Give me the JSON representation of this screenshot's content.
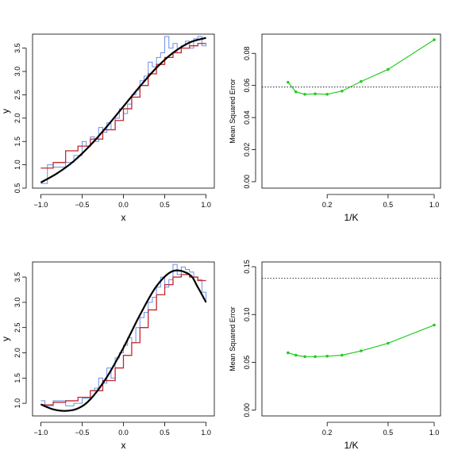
{
  "chart_data": [
    {
      "type": "line",
      "xlabel": "x",
      "ylabel": "y",
      "xlim": [
        -1.1,
        1.1
      ],
      "ylim": [
        0.5,
        3.8
      ],
      "xticks": [
        -1.0,
        -0.5,
        0.0,
        0.5,
        1.0
      ],
      "xtick_labels": [
        "−1.0",
        "−0.5",
        "0.0",
        "0.5",
        "1.0"
      ],
      "yticks": [
        0.5,
        1.0,
        1.5,
        2.0,
        2.5,
        3.0,
        3.5
      ],
      "ytick_labels": [
        "0.5",
        "1.0",
        "1.5",
        "2.0",
        "2.5",
        "3.0",
        "3.5"
      ],
      "series": [
        {
          "style": "step",
          "color": "#6b8ee6",
          "x": [
            -1.0,
            -0.92,
            -0.85,
            -0.7,
            -0.6,
            -0.5,
            -0.45,
            -0.4,
            -0.35,
            -0.3,
            -0.25,
            -0.2,
            -0.15,
            -0.1,
            -0.05,
            0.0,
            0.05,
            0.1,
            0.15,
            0.2,
            0.25,
            0.3,
            0.35,
            0.4,
            0.45,
            0.5,
            0.55,
            0.6,
            0.65,
            0.7,
            0.75,
            0.8,
            0.85,
            0.9,
            0.95,
            1.0
          ],
          "y": [
            0.6,
            1.0,
            0.95,
            1.05,
            1.2,
            1.5,
            1.4,
            1.6,
            1.5,
            1.8,
            1.7,
            1.9,
            1.75,
            2.0,
            2.2,
            2.1,
            2.3,
            2.5,
            2.6,
            2.8,
            2.9,
            3.2,
            3.1,
            3.3,
            3.4,
            3.75,
            3.5,
            3.6,
            3.4,
            3.55,
            3.65,
            3.5,
            3.7,
            3.75,
            3.55,
            3.6
          ]
        },
        {
          "style": "step",
          "color": "#c0282d",
          "x": [
            -1.0,
            -0.85,
            -0.7,
            -0.55,
            -0.4,
            -0.25,
            -0.1,
            0.0,
            0.1,
            0.2,
            0.3,
            0.4,
            0.5,
            0.6,
            0.7,
            0.8,
            0.9,
            1.0
          ],
          "y": [
            0.93,
            1.05,
            1.3,
            1.4,
            1.55,
            1.75,
            1.95,
            2.2,
            2.45,
            2.7,
            2.95,
            3.15,
            3.3,
            3.4,
            3.5,
            3.55,
            3.6,
            3.6
          ]
        },
        {
          "style": "smooth",
          "color": "#000000",
          "x": [
            -1.0,
            -0.8,
            -0.6,
            -0.4,
            -0.2,
            0.0,
            0.2,
            0.4,
            0.6,
            0.8,
            1.0
          ],
          "y": [
            0.62,
            0.82,
            1.08,
            1.42,
            1.82,
            2.25,
            2.68,
            3.08,
            3.4,
            3.62,
            3.72
          ]
        }
      ]
    },
    {
      "type": "line",
      "xscale": "log",
      "xlabel": "1/K",
      "ylabel": "Mean Squared Error",
      "xlim": [
        0.075,
        1.1
      ],
      "ylim": [
        -0.004,
        0.092
      ],
      "xticks": [
        0.2,
        0.5,
        1.0
      ],
      "xtick_labels": [
        "0.2",
        "0.5",
        "1.0"
      ],
      "yticks": [
        0.0,
        0.02,
        0.04,
        0.06,
        0.08
      ],
      "ytick_labels": [
        "0.00",
        "0.02",
        "0.04",
        "0.06",
        "0.08"
      ],
      "hline": 0.059,
      "series": [
        {
          "color": "#22cc22",
          "x": [
            0.111,
            0.125,
            0.143,
            0.167,
            0.2,
            0.25,
            0.333,
            0.5,
            1.0
          ],
          "y": [
            0.062,
            0.056,
            0.0545,
            0.0548,
            0.0545,
            0.0565,
            0.0625,
            0.07,
            0.0885
          ]
        }
      ]
    },
    {
      "type": "line",
      "xlabel": "x",
      "ylabel": "y",
      "xlim": [
        -1.1,
        1.1
      ],
      "ylim": [
        0.75,
        3.8
      ],
      "xticks": [
        -1.0,
        -0.5,
        0.0,
        0.5,
        1.0
      ],
      "xtick_labels": [
        "−1.0",
        "−0.5",
        "0.0",
        "0.5",
        "1.0"
      ],
      "yticks": [
        1.0,
        1.5,
        2.0,
        2.5,
        3.0,
        3.5
      ],
      "ytick_labels": [
        "1.0",
        "1.5",
        "2.0",
        "2.5",
        "3.0",
        "3.5"
      ],
      "series": [
        {
          "style": "step",
          "color": "#6b8ee6",
          "x": [
            -1.0,
            -0.95,
            -0.85,
            -0.7,
            -0.6,
            -0.5,
            -0.4,
            -0.35,
            -0.3,
            -0.25,
            -0.2,
            -0.15,
            -0.1,
            -0.05,
            0.0,
            0.05,
            0.1,
            0.15,
            0.2,
            0.25,
            0.3,
            0.35,
            0.4,
            0.45,
            0.5,
            0.55,
            0.6,
            0.65,
            0.7,
            0.75,
            0.8,
            0.85,
            0.9,
            0.95,
            1.0
          ],
          "y": [
            1.05,
            0.95,
            1.05,
            0.95,
            1.0,
            1.1,
            1.25,
            1.3,
            1.5,
            1.4,
            1.7,
            1.5,
            1.9,
            2.0,
            2.15,
            2.3,
            2.2,
            2.5,
            2.7,
            2.8,
            3.0,
            3.1,
            3.3,
            3.5,
            3.3,
            3.45,
            3.75,
            3.55,
            3.7,
            3.65,
            3.6,
            3.5,
            3.45,
            3.2,
            3.05
          ]
        },
        {
          "style": "step",
          "color": "#c0282d",
          "x": [
            -1.0,
            -0.85,
            -0.7,
            -0.55,
            -0.4,
            -0.25,
            -0.1,
            0.0,
            0.1,
            0.2,
            0.3,
            0.4,
            0.5,
            0.6,
            0.7,
            0.8,
            0.9,
            1.0
          ],
          "y": [
            0.97,
            1.02,
            1.05,
            1.12,
            1.25,
            1.45,
            1.7,
            1.95,
            2.2,
            2.5,
            2.85,
            3.15,
            3.35,
            3.5,
            3.55,
            3.5,
            3.43,
            3.43
          ]
        },
        {
          "style": "smooth",
          "color": "#000000",
          "x": [
            -1.0,
            -0.85,
            -0.7,
            -0.55,
            -0.4,
            -0.2,
            0.0,
            0.2,
            0.4,
            0.6,
            0.8,
            0.9,
            1.0
          ],
          "y": [
            0.98,
            0.88,
            0.85,
            0.9,
            1.08,
            1.52,
            2.1,
            2.75,
            3.32,
            3.62,
            3.55,
            3.3,
            3.0
          ]
        }
      ]
    },
    {
      "type": "line",
      "xscale": "log",
      "xlabel": "1/K",
      "ylabel": "Mean Squared Error",
      "xlim": [
        0.075,
        1.1
      ],
      "ylim": [
        -0.006,
        0.155
      ],
      "xticks": [
        0.2,
        0.5,
        1.0
      ],
      "xtick_labels": [
        "0.2",
        "0.5",
        "1.0"
      ],
      "yticks": [
        0.0,
        0.05,
        0.1,
        0.15
      ],
      "ytick_labels": [
        "0.00",
        "0.05",
        "0.10",
        "0.15"
      ],
      "hline": 0.138,
      "series": [
        {
          "color": "#22cc22",
          "x": [
            0.111,
            0.125,
            0.143,
            0.167,
            0.2,
            0.25,
            0.333,
            0.5,
            1.0
          ],
          "y": [
            0.06,
            0.0575,
            0.056,
            0.056,
            0.0565,
            0.0575,
            0.062,
            0.07,
            0.089
          ]
        }
      ]
    }
  ]
}
